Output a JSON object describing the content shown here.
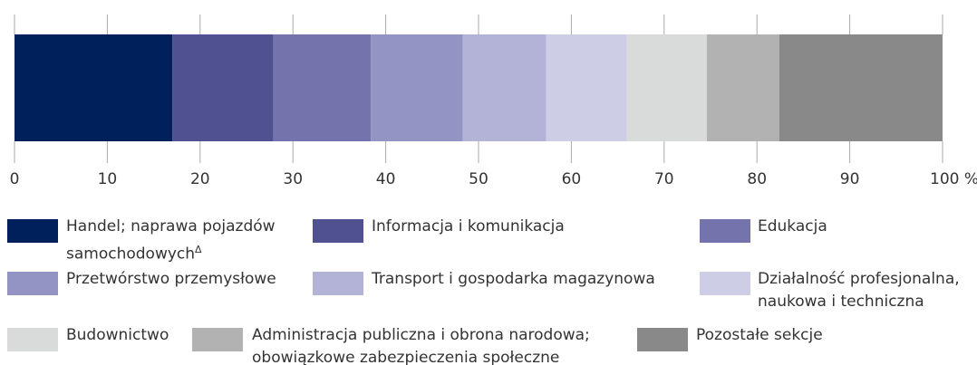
{
  "chart_data": {
    "type": "stacked_bar_horizontal",
    "categories": [
      null
    ],
    "xlim": [
      0,
      100
    ],
    "xticks": [
      0,
      10,
      20,
      30,
      40,
      50,
      60,
      70,
      80,
      90,
      {
        "value": 100,
        "label": "100 %"
      }
    ],
    "series": [
      {
        "name": "Handel; naprawa pojazdów samochodowych",
        "footnote": "Δ",
        "color": "#00205b",
        "values": [
          17.0
        ]
      },
      {
        "name": "Informacja i komunikacja",
        "color": "#4f5190",
        "values": [
          10.9
        ]
      },
      {
        "name": "Edukacja",
        "color": "#7473ab",
        "values": [
          10.5
        ]
      },
      {
        "name": "Przetwórstwo przemysłowe",
        "color": "#9394c3",
        "values": [
          9.9
        ]
      },
      {
        "name": "Transport i gospodarka magazynowa",
        "color": "#b2b3d7",
        "values": [
          9.0
        ]
      },
      {
        "name": "Działalność profesjonalna, naukowa i techniczna",
        "color": "#cdcee6",
        "values": [
          8.7
        ]
      },
      {
        "name": "Budownictwo",
        "color": "#d9dada",
        "values": [
          8.6
        ]
      },
      {
        "name": "Administracja publiczna i obrona narodowa; obowiązkowe zabezpieczenia społeczne",
        "color": "#b1b2b1",
        "values": [
          7.8
        ]
      },
      {
        "name": "Pozostałe sekcje",
        "color": "#898989",
        "values": [
          17.6
        ]
      }
    ]
  }
}
